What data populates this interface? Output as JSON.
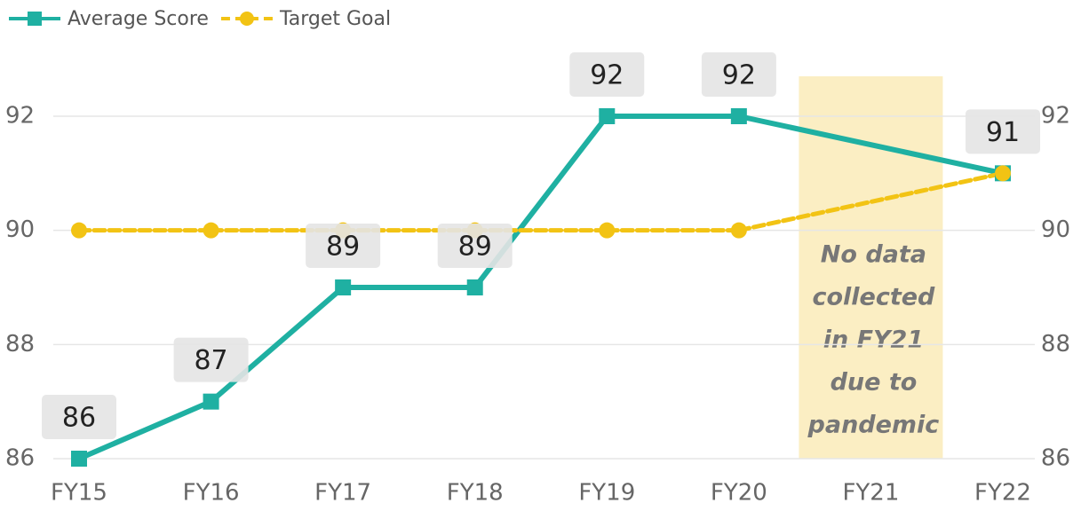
{
  "chart_data": {
    "type": "line",
    "categories": [
      "FY15",
      "FY16",
      "FY17",
      "FY18",
      "FY19",
      "FY20",
      "FY21",
      "FY22"
    ],
    "series": [
      {
        "name": "Average Score",
        "color": "#1fb0a2",
        "values": [
          86,
          87,
          89,
          89,
          92,
          92,
          null,
          91
        ]
      },
      {
        "name": "Target Goal",
        "color": "#f2c314",
        "values": [
          90,
          90,
          90,
          90,
          90,
          90,
          null,
          91
        ],
        "dashed": true
      }
    ],
    "ylim": [
      86,
      92
    ],
    "yticks": [
      86,
      88,
      90,
      92
    ],
    "y2lim": [
      86,
      92
    ],
    "y2ticks": [
      86,
      88,
      90,
      92
    ],
    "grid": true,
    "legend": "top-left",
    "data_labels_series": 0,
    "annotation": [
      "No data",
      "collected",
      "in FY21",
      "due to",
      "pandemic"
    ]
  }
}
